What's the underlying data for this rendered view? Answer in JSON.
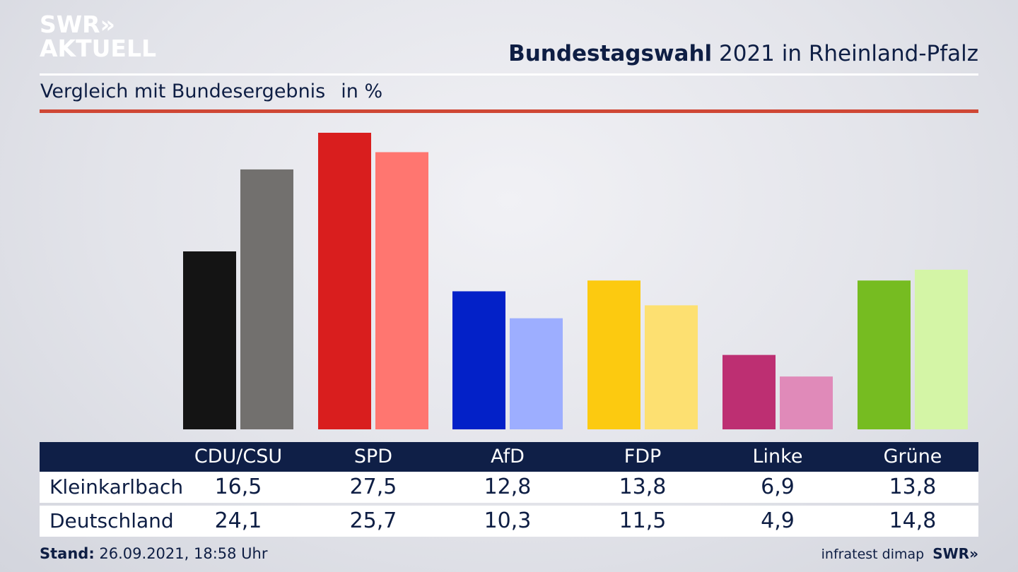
{
  "logo": {
    "line1": "SWR",
    "arrows": "»",
    "line2": "AKTUELL"
  },
  "header": {
    "title_bold": "Bundestagswahl",
    "title_rest": " 2021 in Rheinland-Pfalz",
    "subtitle": "Vergleich mit Bundesergebnis",
    "unit": "in %"
  },
  "chart_data": {
    "type": "bar",
    "categories": [
      "CDU/CSU",
      "SPD",
      "AfD",
      "FDP",
      "Linke",
      "Grüne"
    ],
    "series": [
      {
        "name": "Kleinkarlbach",
        "values": [
          16.5,
          27.5,
          12.8,
          13.8,
          6.9,
          13.8
        ],
        "labels": [
          "16,5",
          "27,5",
          "12,8",
          "13,8",
          "6,9",
          "13,8"
        ]
      },
      {
        "name": "Deutschland",
        "values": [
          24.1,
          25.7,
          10.3,
          11.5,
          4.9,
          14.8
        ],
        "labels": [
          "24,1",
          "25,7",
          "10,3",
          "11,5",
          "4,9",
          "14,8"
        ]
      }
    ],
    "colors": {
      "primary": [
        "#141414",
        "#d91e1e",
        "#0321c8",
        "#fcca10",
        "#bd2f72",
        "#76bc21"
      ],
      "secondary": [
        "#72706e",
        "#ff7670",
        "#9daeff",
        "#fde071",
        "#e08ab9",
        "#d4f5a6"
      ]
    },
    "ylim": [
      0,
      27.5
    ],
    "grid": false
  },
  "footer": {
    "stand_label": "Stand:",
    "stand_value": " 26.09.2021, 18:58 Uhr",
    "source": "infratest dimap",
    "brand": "SWR»"
  }
}
